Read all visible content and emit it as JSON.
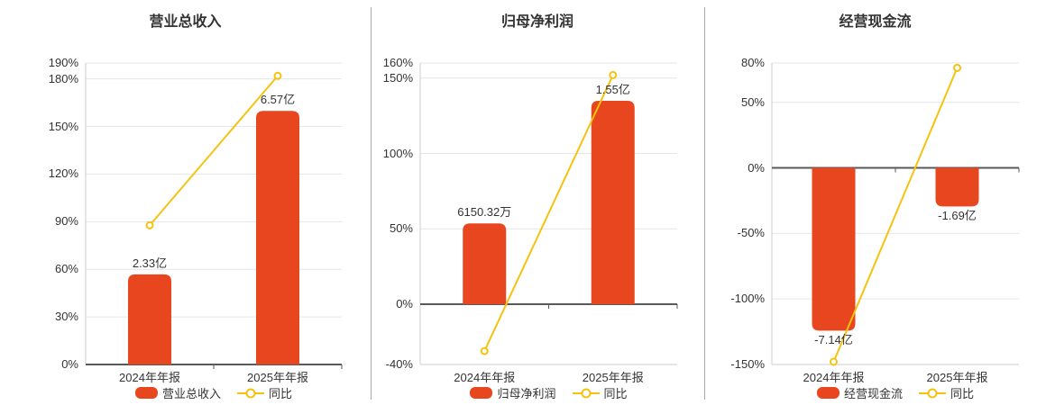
{
  "style": {
    "background": "#ffffff",
    "bar_color": "#e8461f",
    "line_color": "#f5c30f",
    "marker_fill": "#ffffff",
    "title_color": "#333333",
    "label_color": "#333333",
    "grid_color": "#e3e6ec",
    "axis_line_color": "#cccccc",
    "zero_line_color": "#595959",
    "divider_color": "#aaaaaa"
  },
  "chart_data": [
    {
      "type": "bar+line",
      "title": "营业总收入",
      "categories": [
        "2024年年报",
        "2025年年报"
      ],
      "series": [
        {
          "name": "营业总收入",
          "type": "bar",
          "value_labels": [
            "2.33亿",
            "6.57亿"
          ],
          "values_yi": [
            2.33,
            6.57
          ],
          "bar_axis_pct": [
            56.8,
            159.8
          ]
        },
        {
          "name": "同比",
          "type": "line",
          "values_pct": [
            87.7,
            181.9
          ]
        }
      ],
      "yticks": [
        0,
        30,
        60,
        90,
        120,
        150,
        180,
        190
      ],
      "ylim": [
        0,
        190
      ],
      "grid": true,
      "legend_position": "bottom"
    },
    {
      "type": "bar+line",
      "title": "归母净利润",
      "categories": [
        "2024年年报",
        "2025年年报"
      ],
      "series": [
        {
          "name": "归母净利润",
          "type": "bar",
          "value_labels": [
            "6150.32万",
            "1.55亿"
          ],
          "values_yi": [
            0.615032,
            1.55
          ],
          "bar_axis_pct": [
            53.6,
            134.9
          ]
        },
        {
          "name": "同比",
          "type": "line",
          "values_pct": [
            -31.1,
            152.0
          ]
        }
      ],
      "yticks": [
        -40,
        0,
        50,
        100,
        150,
        160
      ],
      "ylim": [
        -40,
        160
      ],
      "grid": true,
      "legend_position": "bottom"
    },
    {
      "type": "bar+line",
      "title": "经营现金流",
      "categories": [
        "2024年年报",
        "2025年年报"
      ],
      "series": [
        {
          "name": "经营现金流",
          "type": "bar",
          "value_labels": [
            "-7.14亿",
            "-1.69亿"
          ],
          "values_yi": [
            -7.14,
            -1.69
          ],
          "bar_axis_pct": [
            -124.2,
            -29.4
          ]
        },
        {
          "name": "同比",
          "type": "line",
          "values_pct": [
            -147.9,
            76.3
          ]
        }
      ],
      "yticks": [
        -150,
        -100,
        -50,
        0,
        50,
        80
      ],
      "ylim": [
        -150,
        80
      ],
      "grid": true,
      "legend_position": "bottom"
    }
  ]
}
